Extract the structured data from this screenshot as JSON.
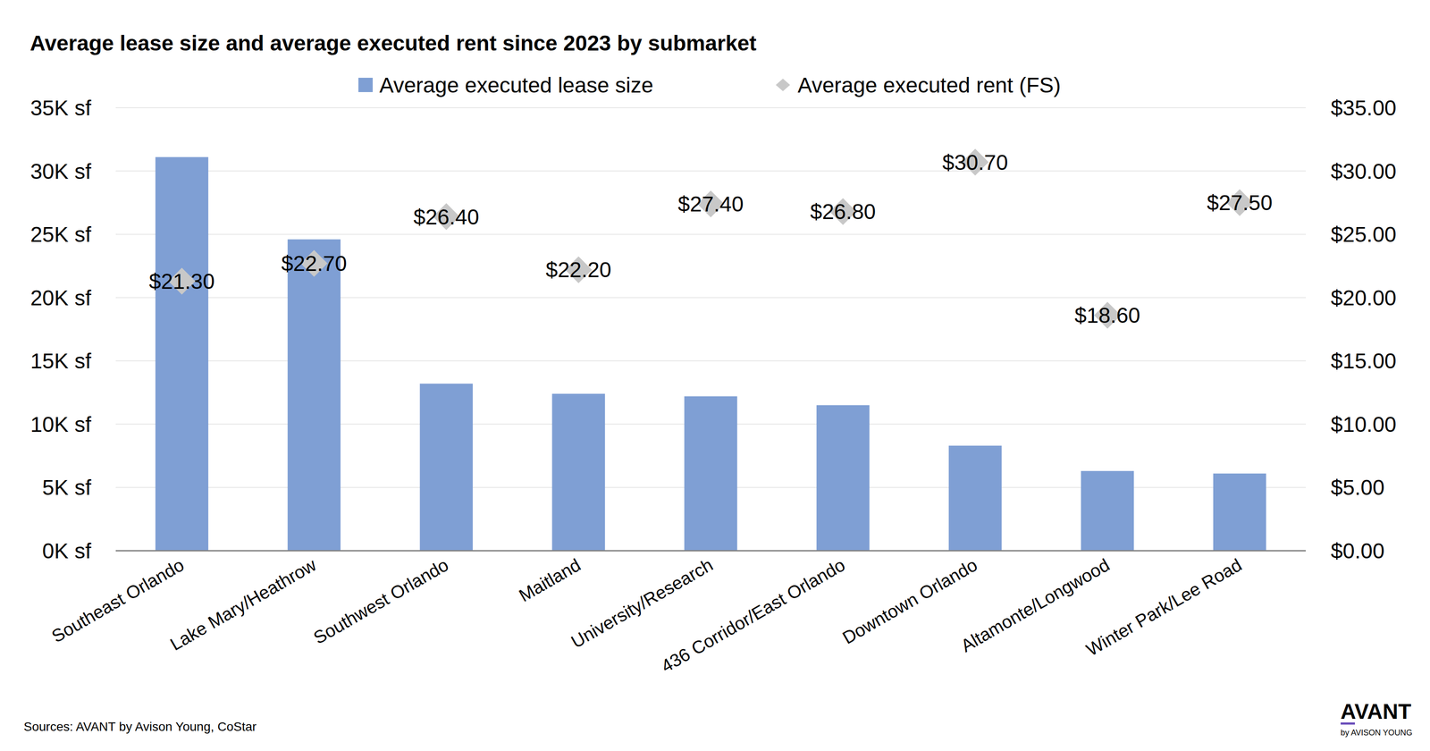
{
  "chart_data": {
    "type": "bar",
    "title": "Average lease size and average executed rent since 2023 by submarket",
    "categories": [
      "Southeast Orlando",
      "Lake Mary/Heathrow",
      "Southwest Orlando",
      "Maitland",
      "University/Research",
      "436 Corridor/East Orlando",
      "Downtown Orlando",
      "Altamonte/Longwood",
      "Winter Park/Lee Road"
    ],
    "series": [
      {
        "name": "Average executed lease size",
        "type": "bar",
        "color": "#7f9fd4",
        "values": [
          31100,
          24600,
          13200,
          12400,
          12200,
          11500,
          8300,
          6300,
          6100
        ]
      },
      {
        "name": "Average executed rent (FS)",
        "type": "scatter",
        "marker": "diamond",
        "color": "#c8c8c8",
        "axis": "y2",
        "data_labels": true,
        "values": [
          21.3,
          22.7,
          26.4,
          22.2,
          27.4,
          26.8,
          30.7,
          18.6,
          27.5
        ],
        "value_labels": [
          "$21.30",
          "$22.70",
          "$26.40",
          "$22.20",
          "$27.40",
          "$26.80",
          "$30.70",
          "$18.60",
          "$27.50"
        ]
      }
    ],
    "ylim": [
      0,
      35000
    ],
    "yticks": [
      {
        "value": 0,
        "label": "0K sf"
      },
      {
        "value": 5000,
        "label": "5K sf"
      },
      {
        "value": 10000,
        "label": "10K sf"
      },
      {
        "value": 15000,
        "label": "15K sf"
      },
      {
        "value": 20000,
        "label": "20K sf"
      },
      {
        "value": 25000,
        "label": "25K sf"
      },
      {
        "value": 30000,
        "label": "30K sf"
      },
      {
        "value": 35000,
        "label": "35K sf"
      }
    ],
    "y2lim": [
      0,
      35
    ],
    "y2ticks": [
      {
        "value": 0,
        "label": "$0.00"
      },
      {
        "value": 5,
        "label": "$5.00"
      },
      {
        "value": 10,
        "label": "$10.00"
      },
      {
        "value": 15,
        "label": "$15.00"
      },
      {
        "value": 20,
        "label": "$20.00"
      },
      {
        "value": 25,
        "label": "$25.00"
      },
      {
        "value": 30,
        "label": "$30.00"
      },
      {
        "value": 35,
        "label": "$35.00"
      }
    ],
    "grid": true,
    "legend": "top",
    "source": "Sources: AVANT by Avison Young, CoStar",
    "logo": {
      "text": "AVANT",
      "subtext": "by AVISON YOUNG"
    }
  }
}
